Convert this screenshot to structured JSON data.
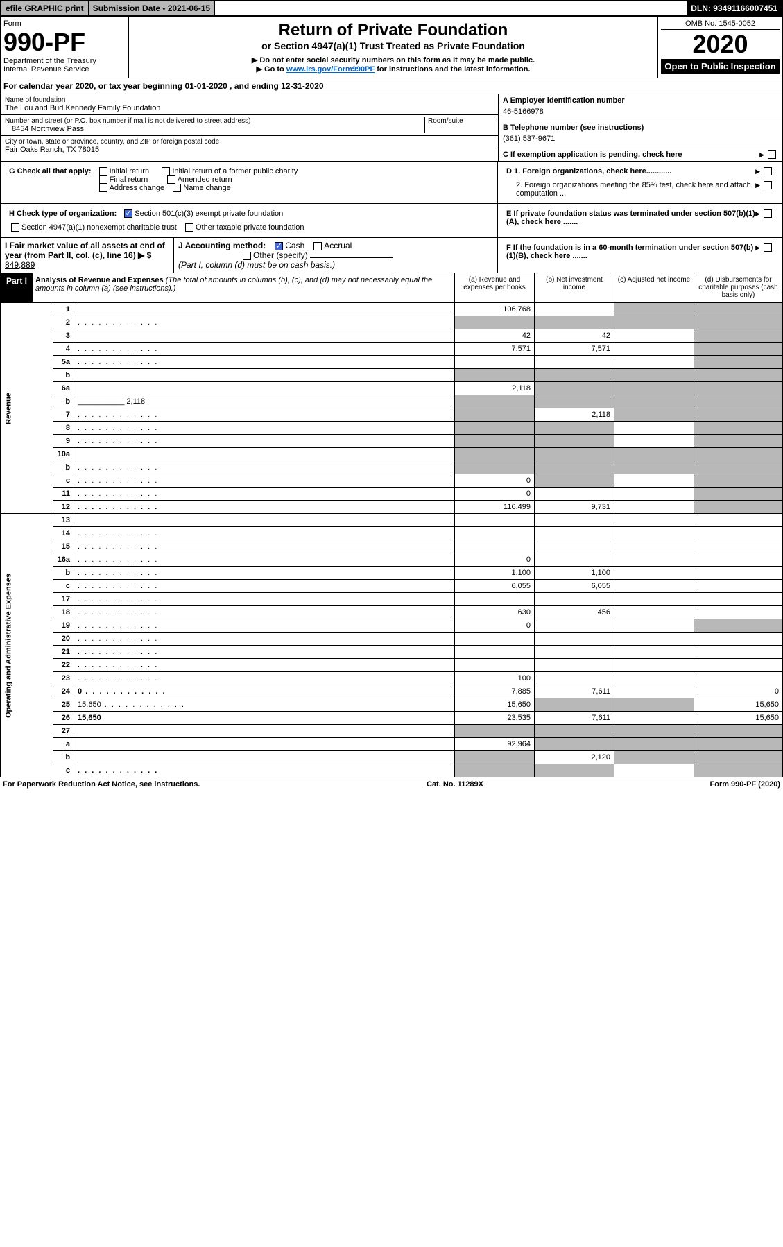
{
  "topbar": {
    "efile": "efile GRAPHIC print",
    "subdate_label": "Submission Date - 2021-06-15",
    "dln": "DLN: 93491166007451"
  },
  "header": {
    "form_label": "Form",
    "form_num": "990-PF",
    "dept": "Department of the Treasury",
    "irs": "Internal Revenue Service",
    "title": "Return of Private Foundation",
    "subtitle": "or Section 4947(a)(1) Trust Treated as Private Foundation",
    "note1": "▶ Do not enter social security numbers on this form as it may be made public.",
    "note2_pre": "▶ Go to ",
    "note2_link": "www.irs.gov/Form990PF",
    "note2_post": " for instructions and the latest information.",
    "omb": "OMB No. 1545-0052",
    "year": "2020",
    "inspection": "Open to Public Inspection"
  },
  "cal_year": "For calendar year 2020, or tax year beginning 01-01-2020                                              , and ending 12-31-2020",
  "info": {
    "name_label": "Name of foundation",
    "name": "The Lou and Bud Kennedy Family Foundation",
    "addr_label": "Number and street (or P.O. box number if mail is not delivered to street address)",
    "addr": "8454 Northview Pass",
    "room_label": "Room/suite",
    "city_label": "City or town, state or province, country, and ZIP or foreign postal code",
    "city": "Fair Oaks Ranch, TX   78015",
    "ein_label": "A Employer identification number",
    "ein": "46-5166978",
    "phone_label": "B Telephone number (see instructions)",
    "phone": "(361) 537-9671",
    "c_label": "C If exemption application is pending, check here",
    "d1_label": "D 1. Foreign organizations, check here............",
    "d2_label": "2. Foreign organizations meeting the 85% test, check here and attach computation ...",
    "e_label": "E  If private foundation status was terminated under section 507(b)(1)(A), check here .......",
    "f_label": "F  If the foundation is in a 60-month termination under section 507(b)(1)(B), check here .......",
    "g_label": "G Check all that apply:",
    "g_opts": [
      "Initial return",
      "Initial return of a former public charity",
      "Final return",
      "Amended return",
      "Address change",
      "Name change"
    ],
    "h_label": "H Check type of organization:",
    "h_opts": [
      "Section 501(c)(3) exempt private foundation",
      "Section 4947(a)(1) nonexempt charitable trust",
      "Other taxable private foundation"
    ],
    "i_label": "I Fair market value of all assets at end of year (from Part II, col. (c), line 16) ▶ $",
    "i_val": "849,889",
    "j_label": "J Accounting method:",
    "j_cash": "Cash",
    "j_accrual": "Accrual",
    "j_other": "Other (specify)",
    "j_note": "(Part I, column (d) must be on cash basis.)"
  },
  "part1": {
    "label": "Part I",
    "title": "Analysis of Revenue and Expenses",
    "title_note": "(The total of amounts in columns (b), (c), and (d) may not necessarily equal the amounts in column (a) (see instructions).)",
    "col_a": "(a)   Revenue and expenses per books",
    "col_b": "(b)   Net investment income",
    "col_c": "(c)   Adjusted net income",
    "col_d": "(d)   Disbursements for charitable purposes (cash basis only)"
  },
  "side_rev": "Revenue",
  "side_exp": "Operating and Administrative Expenses",
  "rows": [
    {
      "n": "1",
      "d": "",
      "a": "106,768",
      "b": "",
      "c": "",
      "cg": true,
      "dg": true
    },
    {
      "n": "2",
      "d": "",
      "dots": true,
      "a": "",
      "b": "",
      "c": "",
      "ag": true,
      "bg": true,
      "cg": true,
      "dg": true,
      "bold": false
    },
    {
      "n": "3",
      "d": "",
      "a": "42",
      "b": "42",
      "c": "",
      "dg": true
    },
    {
      "n": "4",
      "d": "",
      "dots": true,
      "a": "7,571",
      "b": "7,571",
      "c": "",
      "dg": true
    },
    {
      "n": "5a",
      "d": "",
      "dots": true,
      "a": "",
      "b": "",
      "c": "",
      "dg": true
    },
    {
      "n": "b",
      "d": "",
      "a": "",
      "b": "",
      "c": "",
      "ag": true,
      "bg": true,
      "cg": true,
      "dg": true,
      "inline": true
    },
    {
      "n": "6a",
      "d": "",
      "a": "2,118",
      "b": "",
      "c": "",
      "bg": true,
      "cg": true,
      "dg": true
    },
    {
      "n": "b",
      "d": "",
      "inline_val": "2,118",
      "a": "",
      "b": "",
      "c": "",
      "ag": true,
      "bg": true,
      "cg": true,
      "dg": true
    },
    {
      "n": "7",
      "d": "",
      "dots": true,
      "a": "",
      "b": "2,118",
      "c": "",
      "ag": true,
      "cg": true,
      "dg": true
    },
    {
      "n": "8",
      "d": "",
      "dots": true,
      "a": "",
      "b": "",
      "c": "",
      "ag": true,
      "bg": true,
      "dg": true
    },
    {
      "n": "9",
      "d": "",
      "dots": true,
      "a": "",
      "b": "",
      "c": "",
      "ag": true,
      "bg": true,
      "dg": true
    },
    {
      "n": "10a",
      "d": "",
      "a": "",
      "b": "",
      "c": "",
      "ag": true,
      "bg": true,
      "cg": true,
      "dg": true,
      "inline": true
    },
    {
      "n": "b",
      "d": "",
      "dots": true,
      "a": "",
      "b": "",
      "c": "",
      "ag": true,
      "bg": true,
      "cg": true,
      "dg": true,
      "inline": true
    },
    {
      "n": "c",
      "d": "",
      "dots": true,
      "a": "0",
      "b": "",
      "c": "",
      "bg": true,
      "dg": true
    },
    {
      "n": "11",
      "d": "",
      "dots": true,
      "a": "0",
      "b": "",
      "c": "",
      "dg": true
    },
    {
      "n": "12",
      "d": "",
      "dots": true,
      "a": "116,499",
      "b": "9,731",
      "c": "",
      "dg": true,
      "bold": true
    },
    {
      "n": "13",
      "d": "",
      "a": "",
      "b": "",
      "c": ""
    },
    {
      "n": "14",
      "d": "",
      "dots": true,
      "a": "",
      "b": "",
      "c": ""
    },
    {
      "n": "15",
      "d": "",
      "dots": true,
      "a": "",
      "b": "",
      "c": ""
    },
    {
      "n": "16a",
      "d": "",
      "dots": true,
      "a": "0",
      "b": "",
      "c": ""
    },
    {
      "n": "b",
      "d": "",
      "dots": true,
      "a": "1,100",
      "b": "1,100",
      "c": ""
    },
    {
      "n": "c",
      "d": "",
      "dots": true,
      "a": "6,055",
      "b": "6,055",
      "c": ""
    },
    {
      "n": "17",
      "d": "",
      "dots": true,
      "a": "",
      "b": "",
      "c": ""
    },
    {
      "n": "18",
      "d": "",
      "dots": true,
      "a": "630",
      "b": "456",
      "c": ""
    },
    {
      "n": "19",
      "d": "",
      "dots": true,
      "a": "0",
      "b": "",
      "c": "",
      "dg": true
    },
    {
      "n": "20",
      "d": "",
      "dots": true,
      "a": "",
      "b": "",
      "c": ""
    },
    {
      "n": "21",
      "d": "",
      "dots": true,
      "a": "",
      "b": "",
      "c": ""
    },
    {
      "n": "22",
      "d": "",
      "dots": true,
      "a": "",
      "b": "",
      "c": ""
    },
    {
      "n": "23",
      "d": "",
      "dots": true,
      "a": "100",
      "b": "",
      "c": ""
    },
    {
      "n": "24",
      "d": "0",
      "dots": true,
      "a": "7,885",
      "b": "7,611",
      "c": "",
      "bold": true
    },
    {
      "n": "25",
      "d": "15,650",
      "dots": true,
      "a": "15,650",
      "b": "",
      "c": "",
      "bg": true,
      "cg": true
    },
    {
      "n": "26",
      "d": "15,650",
      "a": "23,535",
      "b": "7,611",
      "c": "",
      "bold": true
    },
    {
      "n": "27",
      "d": "",
      "a": "",
      "b": "",
      "c": "",
      "ag": true,
      "bg": true,
      "cg": true,
      "dg": true
    },
    {
      "n": "a",
      "d": "",
      "a": "92,964",
      "b": "",
      "c": "",
      "bg": true,
      "cg": true,
      "dg": true,
      "bold": true
    },
    {
      "n": "b",
      "d": "",
      "a": "",
      "b": "2,120",
      "c": "",
      "ag": true,
      "cg": true,
      "dg": true,
      "bold": true
    },
    {
      "n": "c",
      "d": "",
      "dots": true,
      "a": "",
      "b": "",
      "c": "",
      "ag": true,
      "bg": true,
      "dg": true,
      "bold": true
    }
  ],
  "footer": {
    "left": "For Paperwork Reduction Act Notice, see instructions.",
    "mid": "Cat. No. 11289X",
    "right": "Form 990-PF (2020)"
  }
}
